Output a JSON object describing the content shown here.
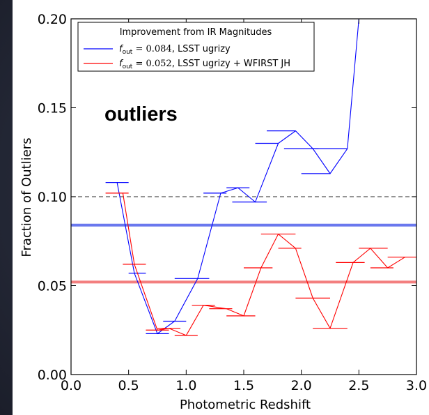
{
  "chart_data": {
    "type": "line",
    "xlabel": "Photometric Redshift",
    "ylabel": "Fraction of Outliers",
    "xlim": [
      0.0,
      3.0
    ],
    "ylim": [
      0.0,
      0.2
    ],
    "xticks": [
      "0.0",
      "0.5",
      "1.0",
      "1.5",
      "2.0",
      "2.5",
      "3.0"
    ],
    "xtick_values": [
      0.0,
      0.5,
      1.0,
      1.5,
      2.0,
      2.5,
      3.0
    ],
    "yticks": [
      "0.00",
      "0.05",
      "0.10",
      "0.15",
      "0.20"
    ],
    "ytick_values": [
      0.0,
      0.05,
      0.1,
      0.15,
      0.2
    ],
    "annotation": "outliers",
    "legend": {
      "title": "Improvement from IR Magnitudes",
      "placement": "top-left",
      "entries": [
        {
          "prefix": "f",
          "sub": "out",
          "value": " = 0.084",
          "text": ", LSST ugrizy",
          "color": "#0000ff"
        },
        {
          "prefix": "f",
          "sub": "out",
          "value": " = 0.052",
          "text": ", LSST ugrizy + WFIRST JH",
          "color": "#ff0000"
        }
      ]
    },
    "reference_line": {
      "y": 0.1,
      "style": "dashed",
      "color": "#555555"
    },
    "series": [
      {
        "color": "#0000ff",
        "mean_line": 0.084,
        "mean_color": "#6a78ee",
        "x": [
          0.4,
          0.55,
          0.75,
          0.9,
          1.1,
          1.3,
          1.45,
          1.6,
          1.8,
          1.95,
          2.1,
          2.25,
          2.4
        ],
        "y": [
          0.108,
          0.057,
          0.023,
          0.03,
          0.054,
          0.102,
          0.105,
          0.097,
          0.13,
          0.137,
          0.127,
          0.113,
          0.127
        ],
        "steps": [
          {
            "x1": 0.3,
            "x2": 0.5,
            "y": 0.108
          },
          {
            "x1": 0.5,
            "x2": 0.65,
            "y": 0.057
          },
          {
            "x1": 0.65,
            "x2": 0.85,
            "y": 0.023
          },
          {
            "x1": 0.8,
            "x2": 1.0,
            "y": 0.03
          },
          {
            "x1": 0.9,
            "x2": 1.2,
            "y": 0.054
          },
          {
            "x1": 1.15,
            "x2": 1.35,
            "y": 0.102
          },
          {
            "x1": 1.35,
            "x2": 1.55,
            "y": 0.105
          },
          {
            "x1": 1.4,
            "x2": 1.7,
            "y": 0.097
          },
          {
            "x1": 1.6,
            "x2": 1.8,
            "y": 0.13
          },
          {
            "x1": 1.7,
            "x2": 1.95,
            "y": 0.137
          },
          {
            "x1": 1.85,
            "x2": 2.15,
            "y": 0.127
          },
          {
            "x1": 2.0,
            "x2": 2.25,
            "y": 0.113
          },
          {
            "x1": 2.1,
            "x2": 2.4,
            "y": 0.127
          }
        ],
        "tail": {
          "x": [
            2.4,
            2.5
          ],
          "y": [
            0.127,
            0.2
          ]
        }
      },
      {
        "color": "#ff0000",
        "mean_line": 0.052,
        "mean_color": "#f37f7f",
        "x": [
          0.45,
          0.55,
          0.75,
          0.85,
          1.0,
          1.15,
          1.35,
          1.5,
          1.65,
          1.8,
          1.95,
          2.1,
          2.25,
          2.45,
          2.6,
          2.75,
          2.9
        ],
        "y": [
          0.102,
          0.062,
          0.025,
          0.026,
          0.022,
          0.039,
          0.037,
          0.033,
          0.06,
          0.079,
          0.071,
          0.043,
          0.026,
          0.063,
          0.071,
          0.06,
          0.066
        ],
        "steps": [
          {
            "x1": 0.3,
            "x2": 0.5,
            "y": 0.102
          },
          {
            "x1": 0.45,
            "x2": 0.65,
            "y": 0.062
          },
          {
            "x1": 0.65,
            "x2": 0.85,
            "y": 0.025
          },
          {
            "x1": 0.75,
            "x2": 0.95,
            "y": 0.026
          },
          {
            "x1": 0.9,
            "x2": 1.1,
            "y": 0.022
          },
          {
            "x1": 1.05,
            "x2": 1.25,
            "y": 0.039
          },
          {
            "x1": 1.2,
            "x2": 1.4,
            "y": 0.037
          },
          {
            "x1": 1.35,
            "x2": 1.6,
            "y": 0.033
          },
          {
            "x1": 1.5,
            "x2": 1.75,
            "y": 0.06
          },
          {
            "x1": 1.65,
            "x2": 1.95,
            "y": 0.079
          },
          {
            "x1": 1.8,
            "x2": 2.0,
            "y": 0.071
          },
          {
            "x1": 1.95,
            "x2": 2.25,
            "y": 0.043
          },
          {
            "x1": 2.1,
            "x2": 2.4,
            "y": 0.026
          },
          {
            "x1": 2.3,
            "x2": 2.55,
            "y": 0.063
          },
          {
            "x1": 2.5,
            "x2": 2.75,
            "y": 0.071
          },
          {
            "x1": 2.6,
            "x2": 2.8,
            "y": 0.06
          },
          {
            "x1": 2.75,
            "x2": 3.0,
            "y": 0.066
          }
        ]
      }
    ]
  }
}
